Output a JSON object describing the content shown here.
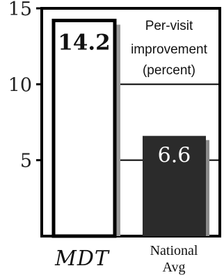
{
  "chart_data": {
    "type": "bar",
    "categories": [
      "MDT",
      "National Avg"
    ],
    "values": [
      14.2,
      6.6
    ],
    "value_labels": [
      "14.2",
      "6.6"
    ],
    "legend_text": [
      "Per-visit",
      "improvement",
      "(percent)"
    ],
    "category_label_lines": [
      [
        "MDT"
      ],
      [
        "National",
        "Avg"
      ]
    ],
    "y_ticks": [
      5,
      10,
      15
    ],
    "ylim": [
      0,
      15
    ],
    "grid": true,
    "colors": {
      "bar_mdt_fill": "#ffffff",
      "bar_mdt_stroke": "#000000",
      "bar_national_fill": "#2b2b2b",
      "axis": "#000000",
      "grid": "#000000"
    }
  }
}
